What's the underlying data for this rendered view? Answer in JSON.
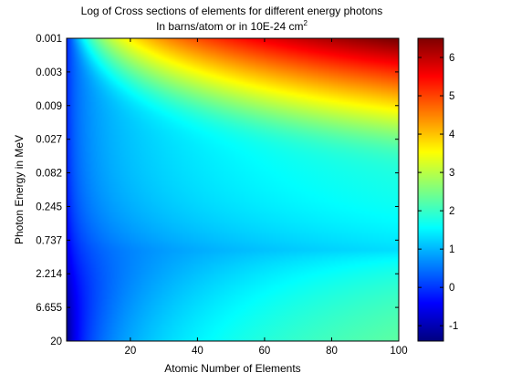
{
  "chart_data": {
    "type": "heatmap",
    "title": "Log of Cross sections of elements for different energy photons",
    "subtitle_prefix": "In barns/atom or in 10E-24 cm",
    "subtitle_superscript": "2",
    "xlabel": "Atomic Number of Elements",
    "ylabel": "Photon Energy in MeV",
    "xlim": [
      1,
      100
    ],
    "x_ticks": [
      20,
      40,
      60,
      80,
      100
    ],
    "y_tick_labels": [
      "0.001",
      "0.003",
      "0.009",
      "0.027",
      "0.082",
      "0.245",
      "0.737",
      "2.214",
      "6.655",
      "20"
    ],
    "y_scale": "log",
    "ylim": [
      0.001,
      20
    ],
    "y_direction": "top-to-bottom increasing energy",
    "colorbar": {
      "colormap": "jet",
      "limits": [
        -1.4,
        6.5
      ],
      "ticks": [
        -1,
        0,
        1,
        2,
        3,
        4,
        5,
        6
      ]
    },
    "grid": false,
    "notes_on_values": "log10 cross section: ~6.5 at high Z and lowest energy, ~-1.3 at low Z and ~2 MeV"
  },
  "colors": {
    "axes": "#000000",
    "background": "#ffffff"
  }
}
